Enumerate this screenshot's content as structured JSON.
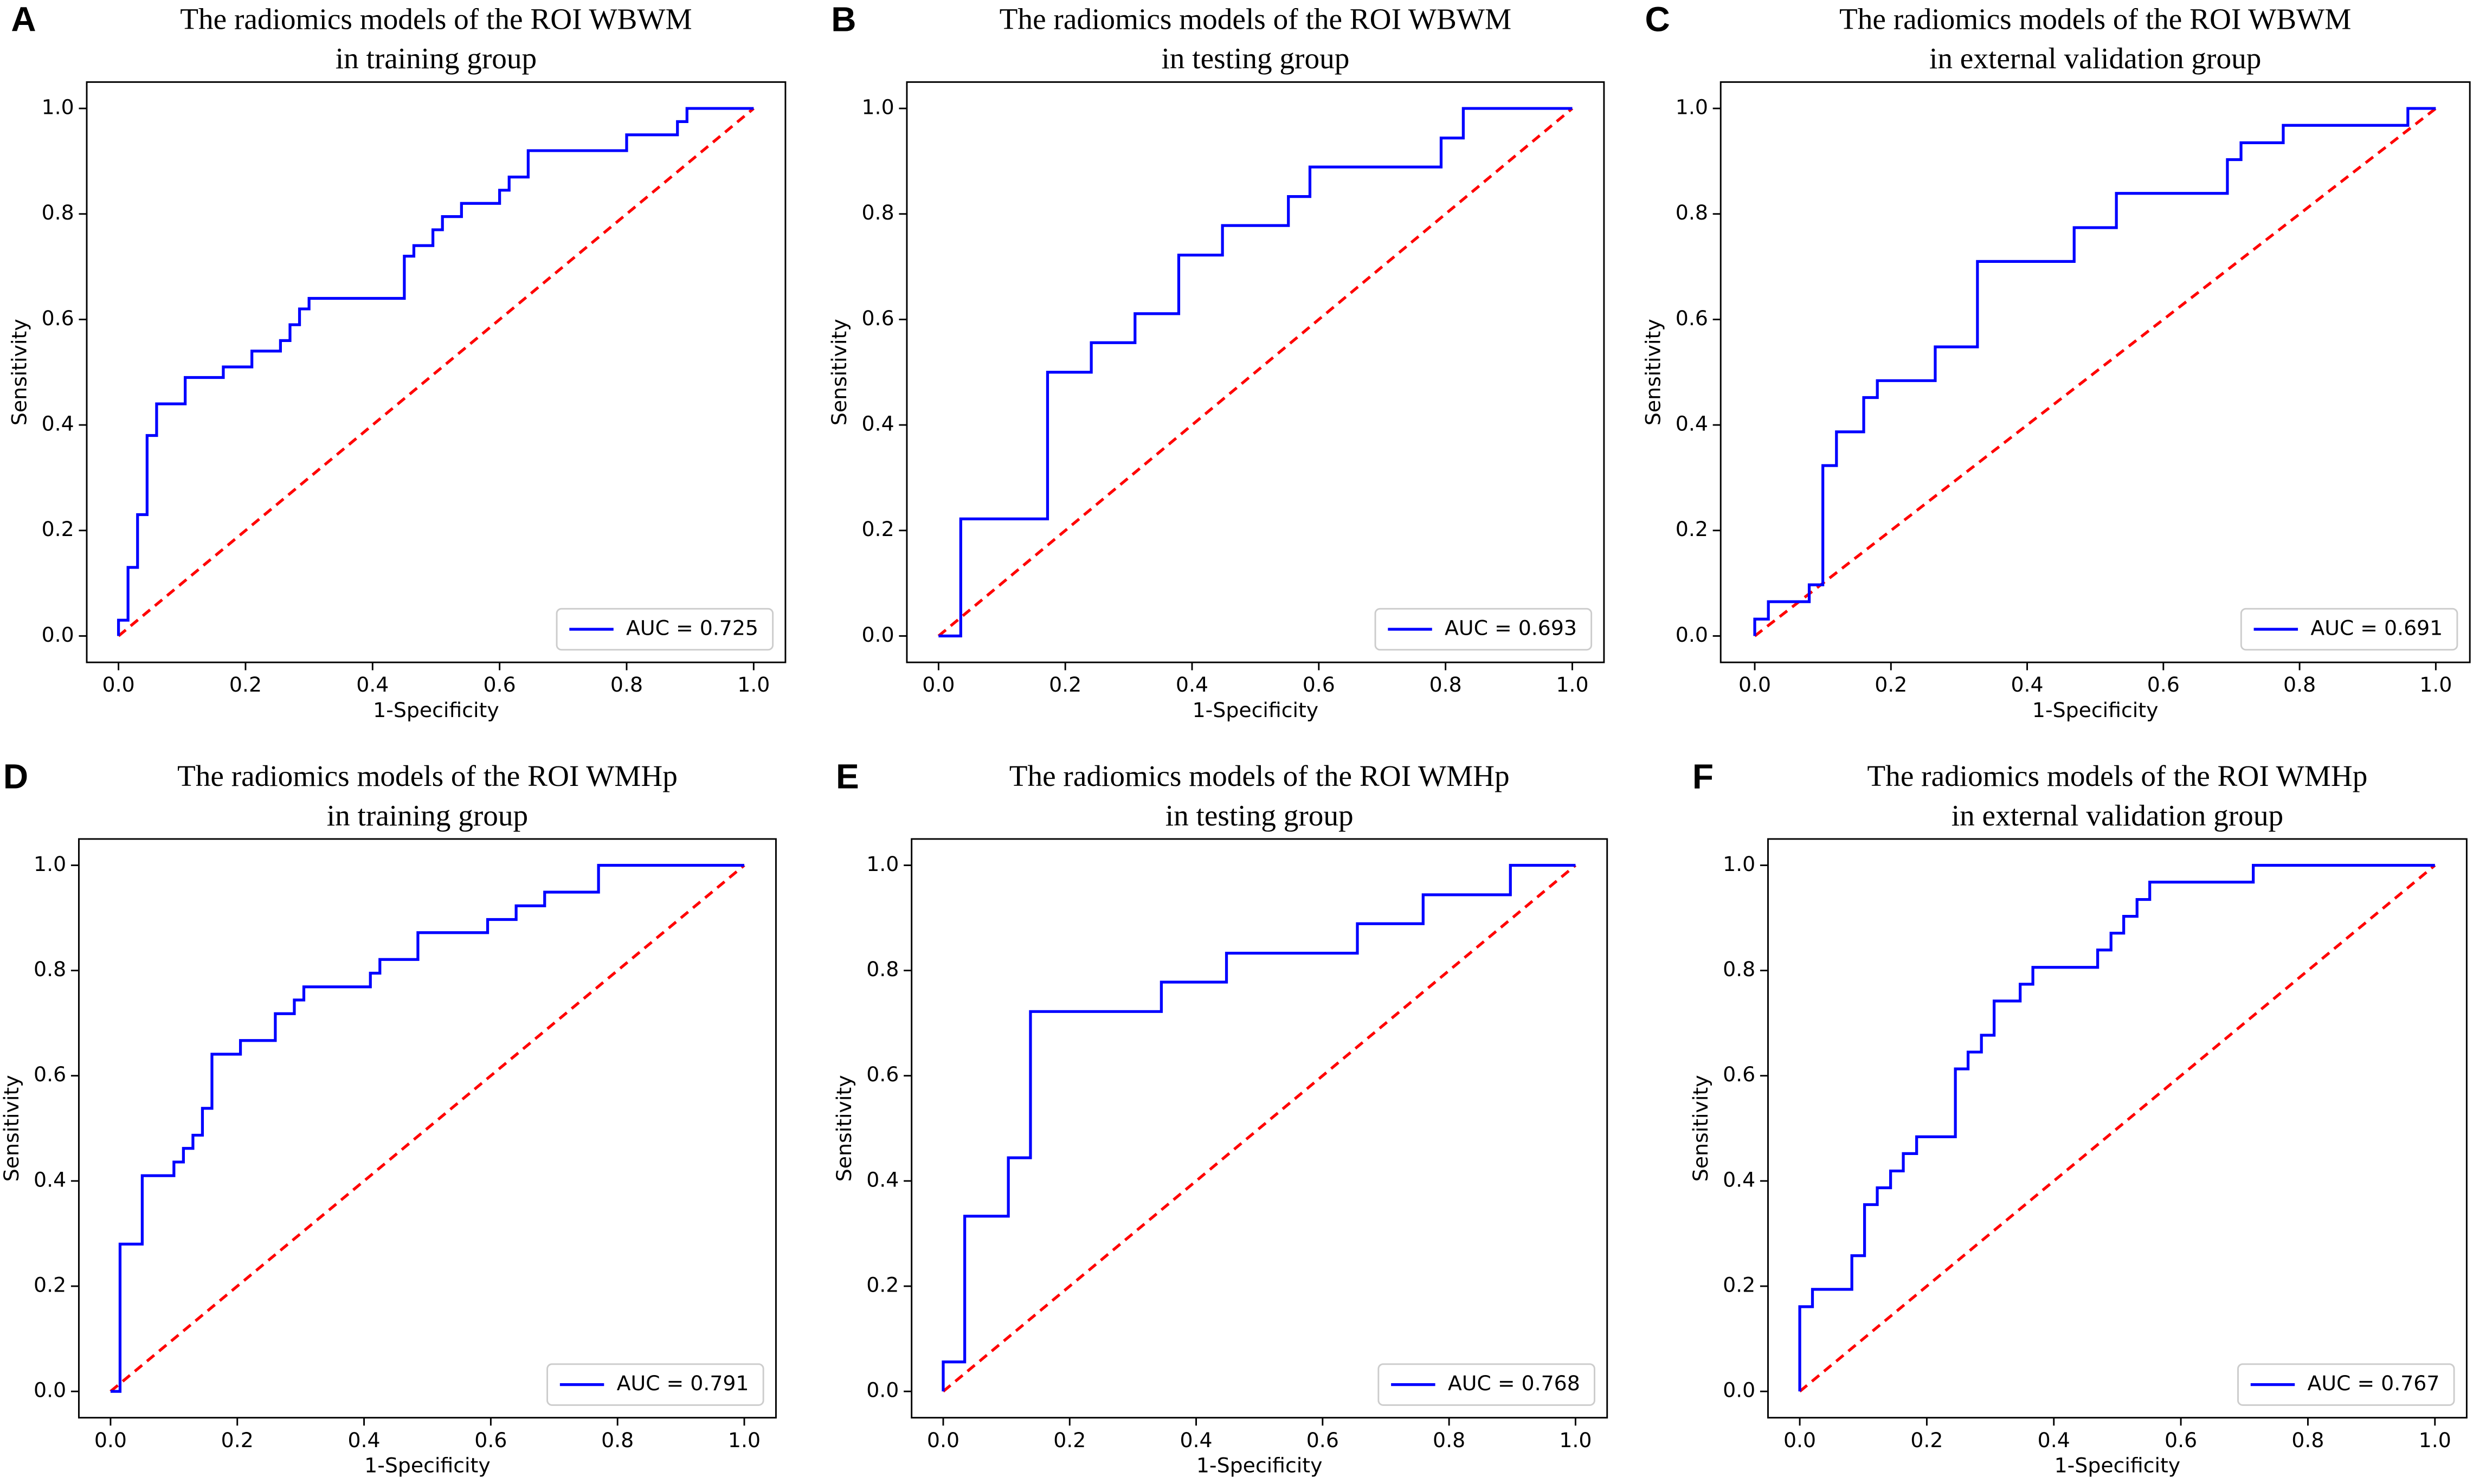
{
  "chart_data": [
    {
      "type": "line",
      "panel": "A",
      "title": [
        "The radiomics models of the ROI WBWM",
        "in training group"
      ],
      "xlabel": "1-Specificity",
      "ylabel": "Sensitivity",
      "legend": "lower right",
      "xlim": [
        -0.05,
        1.05
      ],
      "ylim": [
        -0.05,
        1.05
      ],
      "xticks": [
        {
          "value": 0,
          "label": "0.0"
        },
        {
          "value": 0.2,
          "label": "0.2"
        },
        {
          "value": 0.4,
          "label": "0.4"
        },
        {
          "value": 0.6,
          "label": "0.6"
        },
        {
          "value": 0.8,
          "label": "0.8"
        },
        {
          "value": 1,
          "label": "1.0"
        }
      ],
      "yticks": [
        {
          "value": 0,
          "label": "0.0"
        },
        {
          "value": 0.2,
          "label": "0.2"
        },
        {
          "value": 0.4,
          "label": "0.4"
        },
        {
          "value": 0.6,
          "label": "0.6"
        },
        {
          "value": 0.8,
          "label": "0.8"
        },
        {
          "value": 1,
          "label": "1.0"
        }
      ],
      "series": [
        {
          "name": "AUC = 0.725",
          "color": "#0000ff",
          "x": [
            0,
            0,
            0.015,
            0.015,
            0.03,
            0.03,
            0.045,
            0.045,
            0.06,
            0.06,
            0.105,
            0.105,
            0.165,
            0.165,
            0.21,
            0.21,
            0.255,
            0.255,
            0.27,
            0.27,
            0.285,
            0.285,
            0.3,
            0.3,
            0.45,
            0.45,
            0.465,
            0.465,
            0.495,
            0.495,
            0.51,
            0.51,
            0.54,
            0.54,
            0.6,
            0.6,
            0.615,
            0.615,
            0.645,
            0.645,
            0.8,
            0.8,
            0.88,
            0.88,
            0.895,
            0.895,
            1
          ],
          "values": [
            0,
            0.03,
            0.03,
            0.13,
            0.13,
            0.23,
            0.23,
            0.38,
            0.38,
            0.44,
            0.44,
            0.49,
            0.49,
            0.51,
            0.51,
            0.54,
            0.54,
            0.56,
            0.56,
            0.59,
            0.59,
            0.62,
            0.62,
            0.64,
            0.64,
            0.72,
            0.72,
            0.74,
            0.74,
            0.77,
            0.77,
            0.795,
            0.795,
            0.82,
            0.82,
            0.845,
            0.845,
            0.87,
            0.87,
            0.92,
            0.92,
            0.95,
            0.95,
            0.975,
            0.975,
            1,
            1
          ]
        },
        {
          "color": "#ff0000",
          "linestyle": "dashed",
          "x": [
            0,
            1
          ],
          "values": [
            0,
            1
          ]
        }
      ]
    },
    {
      "type": "line",
      "panel": "B",
      "title": [
        "The radiomics models of the ROI WBWM",
        "in testing group"
      ],
      "xlabel": "1-Specificity",
      "ylabel": "Sensitivity",
      "legend": "lower right",
      "xlim": [
        -0.05,
        1.05
      ],
      "ylim": [
        -0.05,
        1.05
      ],
      "xticks": [
        {
          "value": 0,
          "label": "0.0"
        },
        {
          "value": 0.2,
          "label": "0.2"
        },
        {
          "value": 0.4,
          "label": "0.4"
        },
        {
          "value": 0.6,
          "label": "0.6"
        },
        {
          "value": 0.8,
          "label": "0.8"
        },
        {
          "value": 1,
          "label": "1.0"
        }
      ],
      "yticks": [
        {
          "value": 0,
          "label": "0.0"
        },
        {
          "value": 0.2,
          "label": "0.2"
        },
        {
          "value": 0.4,
          "label": "0.4"
        },
        {
          "value": 0.6,
          "label": "0.6"
        },
        {
          "value": 0.8,
          "label": "0.8"
        },
        {
          "value": 1,
          "label": "1.0"
        }
      ],
      "series": [
        {
          "name": "AUC = 0.693",
          "color": "#0000ff",
          "x": [
            0,
            0.035,
            0.035,
            0.172,
            0.172,
            0.241,
            0.241,
            0.31,
            0.31,
            0.379,
            0.379,
            0.448,
            0.448,
            0.552,
            0.552,
            0.586,
            0.586,
            0.793,
            0.793,
            0.828,
            0.828,
            1
          ],
          "values": [
            0,
            0,
            0.222,
            0.222,
            0.5,
            0.5,
            0.556,
            0.556,
            0.611,
            0.611,
            0.722,
            0.722,
            0.778,
            0.778,
            0.833,
            0.833,
            0.889,
            0.889,
            0.944,
            0.944,
            1,
            1
          ]
        },
        {
          "color": "#ff0000",
          "linestyle": "dashed",
          "x": [
            0,
            1
          ],
          "values": [
            0,
            1
          ]
        }
      ]
    },
    {
      "type": "line",
      "panel": "C",
      "title": [
        "The radiomics models of the ROI WBWM",
        "in external validation group"
      ],
      "xlabel": "1-Specificity",
      "ylabel": "Sensitivity",
      "legend": "lower right",
      "xlim": [
        -0.05,
        1.05
      ],
      "ylim": [
        -0.05,
        1.05
      ],
      "xticks": [
        {
          "value": 0,
          "label": "0.0"
        },
        {
          "value": 0.2,
          "label": "0.2"
        },
        {
          "value": 0.4,
          "label": "0.4"
        },
        {
          "value": 0.6,
          "label": "0.6"
        },
        {
          "value": 0.8,
          "label": "0.8"
        },
        {
          "value": 1,
          "label": "1.0"
        }
      ],
      "yticks": [
        {
          "value": 0,
          "label": "0.0"
        },
        {
          "value": 0.2,
          "label": "0.2"
        },
        {
          "value": 0.4,
          "label": "0.4"
        },
        {
          "value": 0.6,
          "label": "0.6"
        },
        {
          "value": 0.8,
          "label": "0.8"
        },
        {
          "value": 1,
          "label": "1.0"
        }
      ],
      "series": [
        {
          "name": "AUC = 0.691",
          "color": "#0000ff",
          "x": [
            0,
            0,
            0.02,
            0.02,
            0.08,
            0.08,
            0.1,
            0.1,
            0.12,
            0.12,
            0.16,
            0.16,
            0.18,
            0.18,
            0.265,
            0.265,
            0.327,
            0.327,
            0.469,
            0.469,
            0.531,
            0.531,
            0.694,
            0.694,
            0.714,
            0.714,
            0.776,
            0.776,
            0.959,
            0.959,
            1
          ],
          "values": [
            0,
            0.032,
            0.032,
            0.065,
            0.065,
            0.097,
            0.097,
            0.323,
            0.323,
            0.387,
            0.387,
            0.452,
            0.452,
            0.484,
            0.484,
            0.548,
            0.548,
            0.71,
            0.71,
            0.774,
            0.774,
            0.839,
            0.839,
            0.903,
            0.903,
            0.935,
            0.935,
            0.968,
            0.968,
            1,
            1
          ]
        },
        {
          "color": "#ff0000",
          "linestyle": "dashed",
          "x": [
            0,
            1
          ],
          "values": [
            0,
            1
          ]
        }
      ]
    },
    {
      "type": "line",
      "panel": "D",
      "title": [
        "The radiomics models of the ROI WMHp",
        "in training group"
      ],
      "xlabel": "1-Specificity",
      "ylabel": "Sensitivity",
      "legend": "lower right",
      "xlim": [
        -0.05,
        1.05
      ],
      "ylim": [
        -0.05,
        1.05
      ],
      "xticks": [
        {
          "value": 0,
          "label": "0.0"
        },
        {
          "value": 0.2,
          "label": "0.2"
        },
        {
          "value": 0.4,
          "label": "0.4"
        },
        {
          "value": 0.6,
          "label": "0.6"
        },
        {
          "value": 0.8,
          "label": "0.8"
        },
        {
          "value": 1,
          "label": "1.0"
        }
      ],
      "yticks": [
        {
          "value": 0,
          "label": "0.0"
        },
        {
          "value": 0.2,
          "label": "0.2"
        },
        {
          "value": 0.4,
          "label": "0.4"
        },
        {
          "value": 0.6,
          "label": "0.6"
        },
        {
          "value": 0.8,
          "label": "0.8"
        },
        {
          "value": 1,
          "label": "1.0"
        }
      ],
      "series": [
        {
          "name": "AUC = 0.791",
          "color": "#0000ff",
          "x": [
            0,
            0.015,
            0.015,
            0.05,
            0.05,
            0.1,
            0.1,
            0.115,
            0.115,
            0.13,
            0.13,
            0.145,
            0.145,
            0.16,
            0.16,
            0.205,
            0.205,
            0.26,
            0.26,
            0.29,
            0.29,
            0.305,
            0.305,
            0.41,
            0.41,
            0.425,
            0.425,
            0.485,
            0.485,
            0.595,
            0.595,
            0.64,
            0.64,
            0.685,
            0.685,
            0.77,
            0.77,
            1
          ],
          "values": [
            0,
            0,
            0.28,
            0.28,
            0.41,
            0.41,
            0.436,
            0.436,
            0.462,
            0.462,
            0.487,
            0.487,
            0.538,
            0.538,
            0.641,
            0.641,
            0.667,
            0.667,
            0.718,
            0.718,
            0.744,
            0.744,
            0.769,
            0.769,
            0.795,
            0.795,
            0.821,
            0.821,
            0.872,
            0.872,
            0.897,
            0.897,
            0.923,
            0.923,
            0.949,
            0.949,
            1,
            1
          ]
        },
        {
          "color": "#ff0000",
          "linestyle": "dashed",
          "x": [
            0,
            1
          ],
          "values": [
            0,
            1
          ]
        }
      ]
    },
    {
      "type": "line",
      "panel": "E",
      "title": [
        "The radiomics models of the ROI WMHp",
        "in testing group"
      ],
      "xlabel": "1-Specificity",
      "ylabel": "Sensitivity",
      "legend": "lower right",
      "xlim": [
        -0.05,
        1.05
      ],
      "ylim": [
        -0.05,
        1.05
      ],
      "xticks": [
        {
          "value": 0,
          "label": "0.0"
        },
        {
          "value": 0.2,
          "label": "0.2"
        },
        {
          "value": 0.4,
          "label": "0.4"
        },
        {
          "value": 0.6,
          "label": "0.6"
        },
        {
          "value": 0.8,
          "label": "0.8"
        },
        {
          "value": 1,
          "label": "1.0"
        }
      ],
      "yticks": [
        {
          "value": 0,
          "label": "0.0"
        },
        {
          "value": 0.2,
          "label": "0.2"
        },
        {
          "value": 0.4,
          "label": "0.4"
        },
        {
          "value": 0.6,
          "label": "0.6"
        },
        {
          "value": 0.8,
          "label": "0.8"
        },
        {
          "value": 1,
          "label": "1.0"
        }
      ],
      "series": [
        {
          "name": "AUC = 0.768",
          "color": "#0000ff",
          "x": [
            0,
            0,
            0.034,
            0.034,
            0.103,
            0.103,
            0.138,
            0.138,
            0.345,
            0.345,
            0.448,
            0.448,
            0.655,
            0.655,
            0.759,
            0.759,
            0.897,
            0.897,
            1
          ],
          "values": [
            0,
            0.056,
            0.056,
            0.333,
            0.333,
            0.444,
            0.444,
            0.722,
            0.722,
            0.778,
            0.778,
            0.833,
            0.833,
            0.889,
            0.889,
            0.944,
            0.944,
            1,
            1
          ]
        },
        {
          "color": "#ff0000",
          "linestyle": "dashed",
          "x": [
            0,
            1
          ],
          "values": [
            0,
            1
          ]
        }
      ]
    },
    {
      "type": "line",
      "panel": "F",
      "title": [
        "The radiomics models of the ROI WMHp",
        "in external validation group"
      ],
      "xlabel": "1-Specificity",
      "ylabel": "Sensitivity",
      "legend": "lower right",
      "xlim": [
        -0.05,
        1.05
      ],
      "ylim": [
        -0.05,
        1.05
      ],
      "xticks": [
        {
          "value": 0,
          "label": "0.0"
        },
        {
          "value": 0.2,
          "label": "0.2"
        },
        {
          "value": 0.4,
          "label": "0.4"
        },
        {
          "value": 0.6,
          "label": "0.6"
        },
        {
          "value": 0.8,
          "label": "0.8"
        },
        {
          "value": 1,
          "label": "1.0"
        }
      ],
      "yticks": [
        {
          "value": 0,
          "label": "0.0"
        },
        {
          "value": 0.2,
          "label": "0.2"
        },
        {
          "value": 0.4,
          "label": "0.4"
        },
        {
          "value": 0.6,
          "label": "0.6"
        },
        {
          "value": 0.8,
          "label": "0.8"
        },
        {
          "value": 1,
          "label": "1.0"
        }
      ],
      "series": [
        {
          "name": "AUC = 0.767",
          "color": "#0000ff",
          "x": [
            0,
            0,
            0.02,
            0.02,
            0.082,
            0.082,
            0.102,
            0.102,
            0.122,
            0.122,
            0.143,
            0.143,
            0.163,
            0.163,
            0.184,
            0.184,
            0.245,
            0.245,
            0.265,
            0.265,
            0.286,
            0.286,
            0.306,
            0.306,
            0.347,
            0.347,
            0.367,
            0.367,
            0.469,
            0.469,
            0.49,
            0.49,
            0.51,
            0.51,
            0.531,
            0.531,
            0.551,
            0.551,
            0.714,
            0.714,
            1
          ],
          "values": [
            0,
            0.161,
            0.161,
            0.194,
            0.194,
            0.258,
            0.258,
            0.355,
            0.355,
            0.387,
            0.387,
            0.419,
            0.419,
            0.452,
            0.452,
            0.484,
            0.484,
            0.613,
            0.613,
            0.645,
            0.645,
            0.677,
            0.677,
            0.742,
            0.742,
            0.774,
            0.774,
            0.806,
            0.806,
            0.839,
            0.839,
            0.871,
            0.871,
            0.903,
            0.903,
            0.935,
            0.935,
            0.968,
            0.968,
            1,
            1
          ]
        },
        {
          "color": "#ff0000",
          "linestyle": "dashed",
          "x": [
            0,
            1
          ],
          "values": [
            0,
            1
          ]
        }
      ]
    }
  ]
}
